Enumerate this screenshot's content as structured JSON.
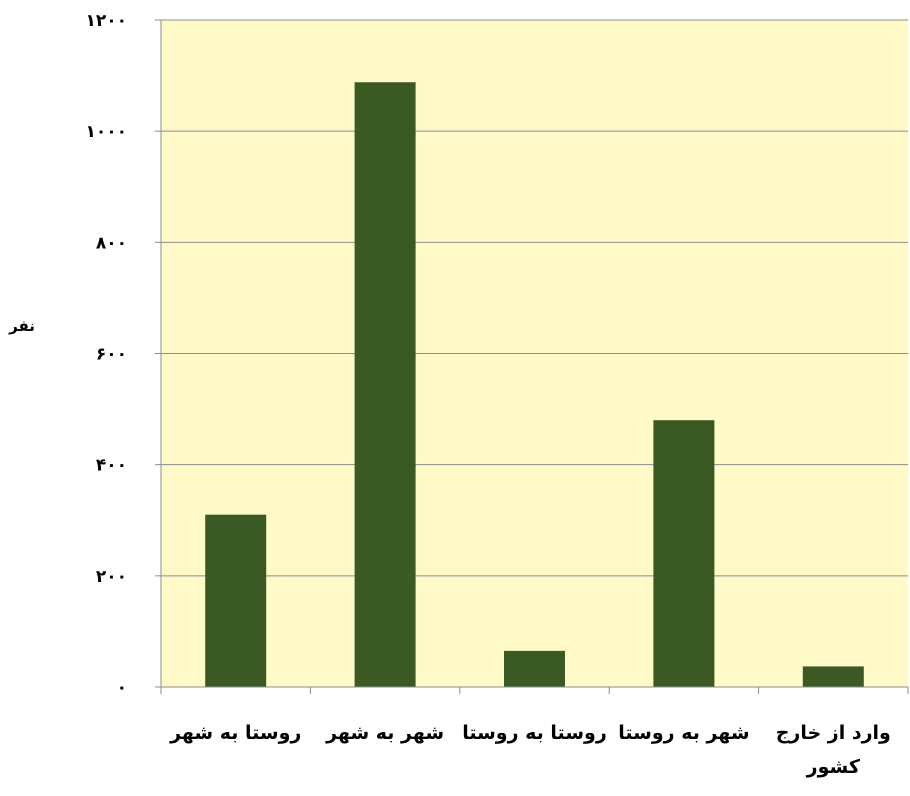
{
  "chart_data": {
    "type": "bar",
    "categories": [
      "روستا به شهر",
      "شهر به شهر",
      "روستا به روستا",
      "شهر به روستا",
      "وارد از خارج کشور"
    ],
    "category_lines": [
      [
        "روستا به شهر"
      ],
      [
        "شهر به شهر"
      ],
      [
        "روستا به روستا"
      ],
      [
        "شهر به روستا"
      ],
      [
        "وارد از خارج",
        "کشور"
      ]
    ],
    "values": [
      310,
      1088,
      65,
      480,
      37
    ],
    "ylabel": "نفر",
    "ylim": [
      0,
      1200
    ],
    "yticks": [
      0,
      200,
      400,
      600,
      800,
      1000,
      1200
    ],
    "ytick_labels": [
      "٠",
      "٢٠٠",
      "۴٠٠",
      "۶٠٠",
      "٨٠٠",
      "١٠٠٠",
      "١٢٠٠"
    ],
    "grid": true,
    "legend": "none",
    "colors": {
      "bar": "#3b5a23",
      "plot_background": "#fffac8",
      "gridline": "#8c8c8c",
      "axis": "#8c8c8c"
    }
  }
}
